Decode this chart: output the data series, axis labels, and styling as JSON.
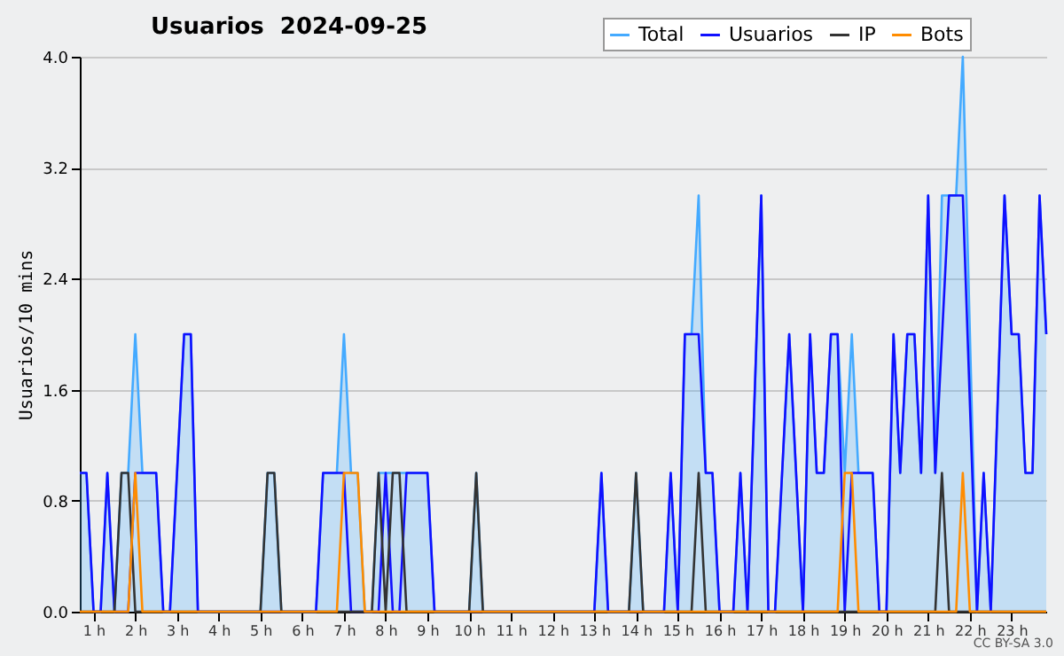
{
  "chart_data": {
    "type": "line",
    "title": "Usuarios  2024-09-25",
    "ylabel": "Usuarios/10 mins",
    "annotations": [
      "CC BY-SA 3.0"
    ],
    "xlim": [
      0.67,
      23.83
    ],
    "xticks": [
      {
        "value": 1,
        "label": "1 h"
      },
      {
        "value": 2,
        "label": "2 h"
      },
      {
        "value": 3,
        "label": "3 h"
      },
      {
        "value": 4,
        "label": "4 h"
      },
      {
        "value": 5,
        "label": "5 h"
      },
      {
        "value": 6,
        "label": "6 h"
      },
      {
        "value": 7,
        "label": "7 h"
      },
      {
        "value": 8,
        "label": "8 h"
      },
      {
        "value": 9,
        "label": "9 h"
      },
      {
        "value": 10,
        "label": "10 h"
      },
      {
        "value": 11,
        "label": "11 h"
      },
      {
        "value": 12,
        "label": "12 h"
      },
      {
        "value": 13,
        "label": "13 h"
      },
      {
        "value": 14,
        "label": "14 h"
      },
      {
        "value": 15,
        "label": "15 h"
      },
      {
        "value": 16,
        "label": "16 h"
      },
      {
        "value": 17,
        "label": "17 h"
      },
      {
        "value": 18,
        "label": "18 h"
      },
      {
        "value": 19,
        "label": "19 h"
      },
      {
        "value": 20,
        "label": "20 h"
      },
      {
        "value": 21,
        "label": "21 h"
      },
      {
        "value": 22,
        "label": "22 h"
      },
      {
        "value": 23,
        "label": "23 h"
      }
    ],
    "ylim": [
      0,
      4
    ],
    "yticks": [
      {
        "value": 0,
        "label": "0.0"
      },
      {
        "value": 0.8,
        "label": "0.8"
      },
      {
        "value": 1.6,
        "label": "1.6"
      },
      {
        "value": 2.4,
        "label": "2.4"
      },
      {
        "value": 3.2,
        "label": "3.2"
      },
      {
        "value": 4,
        "label": "4.0"
      }
    ],
    "grid": "y",
    "legend": "top right",
    "series": [
      {
        "name": "Total",
        "type": "area",
        "color": "#44aaff",
        "x": [
          0.67,
          0.83,
          1,
          1.17,
          1.33,
          1.5,
          1.67,
          1.83,
          2,
          2.17,
          2.5,
          2.67,
          2.83,
          3.17,
          3.33,
          3.5,
          5,
          5.17,
          5.33,
          5.5,
          6.33,
          6.5,
          6.83,
          7,
          7.17,
          7.33,
          7.5,
          7.67,
          7.83,
          9,
          9.17,
          10,
          10.17,
          10.33,
          13,
          13.17,
          13.33,
          13.83,
          14,
          14.17,
          14.67,
          14.83,
          15,
          15.17,
          15.33,
          15.5,
          15.67,
          15.83,
          16,
          16.33,
          16.5,
          16.67,
          17,
          17.17,
          17.33,
          17.67,
          18,
          18.17,
          18.33,
          18.5,
          18.67,
          18.83,
          19,
          19.17,
          19.33,
          19.67,
          19.83,
          20,
          20.17,
          20.33,
          20.5,
          20.67,
          20.83,
          21,
          21.17,
          21.33,
          21.67,
          21.83,
          22.17,
          22.33,
          22.5,
          22.83,
          23,
          23.17,
          23.33,
          23.5,
          23.67,
          23.83
        ],
        "values": [
          1,
          1,
          0,
          0,
          1,
          0,
          1,
          1,
          2,
          1,
          1,
          0,
          0,
          2,
          2,
          0,
          0,
          1,
          1,
          0,
          0,
          1,
          1,
          2,
          1,
          1,
          0,
          0,
          1,
          1,
          0,
          0,
          1,
          0,
          0,
          1,
          0,
          0,
          1,
          0,
          0,
          1,
          0,
          2,
          2,
          3,
          1,
          1,
          0,
          0,
          1,
          0,
          3,
          0,
          0,
          2,
          0,
          2,
          1,
          1,
          2,
          2,
          1,
          2,
          1,
          1,
          0,
          0,
          2,
          1,
          2,
          2,
          1,
          3,
          1,
          3,
          3,
          4,
          0,
          1,
          0,
          3,
          2,
          2,
          1,
          1,
          3,
          2
        ]
      },
      {
        "name": "Usuarios",
        "type": "line",
        "color": "#1010ff",
        "x": [
          0.67,
          0.83,
          1,
          1.17,
          1.33,
          1.5,
          1.83,
          2,
          2.5,
          2.67,
          2.83,
          3.17,
          3.33,
          3.5,
          6.33,
          6.5,
          7,
          7.17,
          7.83,
          8,
          8.17,
          8.33,
          8.5,
          9,
          9.17,
          13,
          13.17,
          13.33,
          14.67,
          14.83,
          15,
          15.17,
          15.5,
          15.67,
          15.83,
          16,
          16.33,
          16.5,
          16.67,
          17,
          17.17,
          17.33,
          17.67,
          18,
          18.17,
          18.33,
          18.5,
          18.67,
          18.83,
          19,
          19.17,
          19.67,
          19.83,
          20,
          20.17,
          20.33,
          20.5,
          20.67,
          20.83,
          21,
          21.17,
          21.5,
          21.83,
          22.17,
          22.33,
          22.5,
          22.83,
          23,
          23.17,
          23.33,
          23.5,
          23.67,
          23.83
        ],
        "values": [
          1,
          1,
          0,
          0,
          1,
          0,
          0,
          1,
          1,
          0,
          0,
          2,
          2,
          0,
          0,
          1,
          1,
          0,
          0,
          1,
          0,
          0,
          1,
          1,
          0,
          0,
          1,
          0,
          0,
          1,
          0,
          2,
          2,
          1,
          1,
          0,
          0,
          1,
          0,
          3,
          0,
          0,
          2,
          0,
          2,
          1,
          1,
          2,
          2,
          0,
          1,
          1,
          0,
          0,
          2,
          1,
          2,
          2,
          1,
          3,
          1,
          3,
          3,
          0,
          1,
          0,
          3,
          2,
          2,
          1,
          1,
          3,
          2
        ]
      },
      {
        "name": "IP",
        "type": "line",
        "color": "#333333",
        "x": [
          0.67,
          1.5,
          1.67,
          1.83,
          2,
          5,
          5.17,
          5.33,
          5.5,
          7.67,
          7.83,
          8,
          8.17,
          8.33,
          8.5,
          10,
          10.17,
          10.33,
          13.83,
          14,
          14.17,
          15.33,
          15.5,
          15.67,
          21.17,
          21.33,
          21.5,
          23.83
        ],
        "values": [
          0,
          0,
          1,
          1,
          0,
          0,
          1,
          1,
          0,
          0,
          1,
          0,
          1,
          1,
          0,
          0,
          1,
          0,
          0,
          1,
          0,
          0,
          1,
          0,
          0,
          1,
          0,
          0
        ]
      },
      {
        "name": "Bots",
        "type": "line",
        "color": "#ff8c00",
        "x": [
          0.67,
          1.83,
          2,
          2.17,
          6.83,
          7,
          7.33,
          7.5,
          18.83,
          19,
          19.17,
          19.33,
          21.67,
          21.83,
          22,
          23.83
        ],
        "values": [
          0,
          0,
          1,
          0,
          0,
          1,
          1,
          0,
          0,
          1,
          1,
          0,
          0,
          1,
          0,
          0
        ]
      }
    ]
  }
}
